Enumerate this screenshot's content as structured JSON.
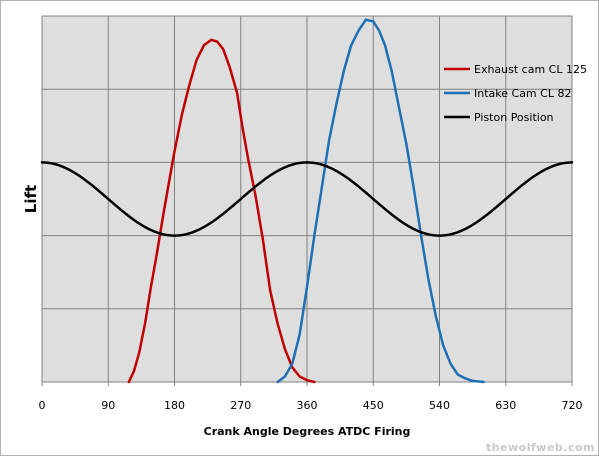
{
  "chart_data": {
    "type": "line",
    "title": "",
    "xlabel": "Crank Angle Degrees ATDC Firing",
    "ylabel": "Lift",
    "xlim": [
      0,
      720
    ],
    "ylim": [
      0,
      10
    ],
    "x_ticks": [
      0,
      90,
      180,
      270,
      360,
      450,
      540,
      630,
      720
    ],
    "y_grid_lines": [
      0,
      2,
      4,
      6,
      8,
      10
    ],
    "y_tick_labels_shown": false,
    "grid": true,
    "legend_position": "top-right",
    "series": [
      {
        "name": "Exhaust cam CL 125",
        "color": "#c00000",
        "points": [
          [
            118,
            0
          ],
          [
            125,
            0.3
          ],
          [
            132,
            0.8
          ],
          [
            140,
            1.6
          ],
          [
            148,
            2.6
          ],
          [
            156,
            3.5
          ],
          [
            165,
            4.6
          ],
          [
            172,
            5.4
          ],
          [
            180,
            6.3
          ],
          [
            190,
            7.3
          ],
          [
            200,
            8.1
          ],
          [
            210,
            8.8
          ],
          [
            220,
            9.2
          ],
          [
            230,
            9.35
          ],
          [
            238,
            9.3
          ],
          [
            246,
            9.1
          ],
          [
            255,
            8.6
          ],
          [
            265,
            7.9
          ],
          [
            272,
            7.0
          ],
          [
            280,
            6.1
          ],
          [
            290,
            5.1
          ],
          [
            300,
            3.9
          ],
          [
            310,
            2.5
          ],
          [
            320,
            1.6
          ],
          [
            330,
            0.9
          ],
          [
            340,
            0.4
          ],
          [
            350,
            0.15
          ],
          [
            360,
            0.05
          ],
          [
            370,
            0
          ]
        ]
      },
      {
        "name": "Intake Cam CL 82",
        "color": "#1f6fb5",
        "points": [
          [
            320,
            0
          ],
          [
            330,
            0.15
          ],
          [
            340,
            0.5
          ],
          [
            350,
            1.3
          ],
          [
            360,
            2.6
          ],
          [
            370,
            4.0
          ],
          [
            380,
            5.3
          ],
          [
            390,
            6.6
          ],
          [
            400,
            7.6
          ],
          [
            410,
            8.5
          ],
          [
            420,
            9.2
          ],
          [
            430,
            9.6
          ],
          [
            440,
            9.9
          ],
          [
            450,
            9.85
          ],
          [
            458,
            9.6
          ],
          [
            466,
            9.2
          ],
          [
            475,
            8.5
          ],
          [
            485,
            7.5
          ],
          [
            495,
            6.5
          ],
          [
            505,
            5.3
          ],
          [
            515,
            4.0
          ],
          [
            525,
            2.8
          ],
          [
            535,
            1.8
          ],
          [
            545,
            1.0
          ],
          [
            555,
            0.5
          ],
          [
            565,
            0.2
          ],
          [
            575,
            0.1
          ],
          [
            585,
            0.03
          ],
          [
            600,
            0
          ]
        ]
      },
      {
        "name": "Piston Position",
        "color": "#000000",
        "formula": "y = 5 + 1 * cos(x)",
        "points": []
      }
    ]
  },
  "watermark": "thewolfweb.com"
}
